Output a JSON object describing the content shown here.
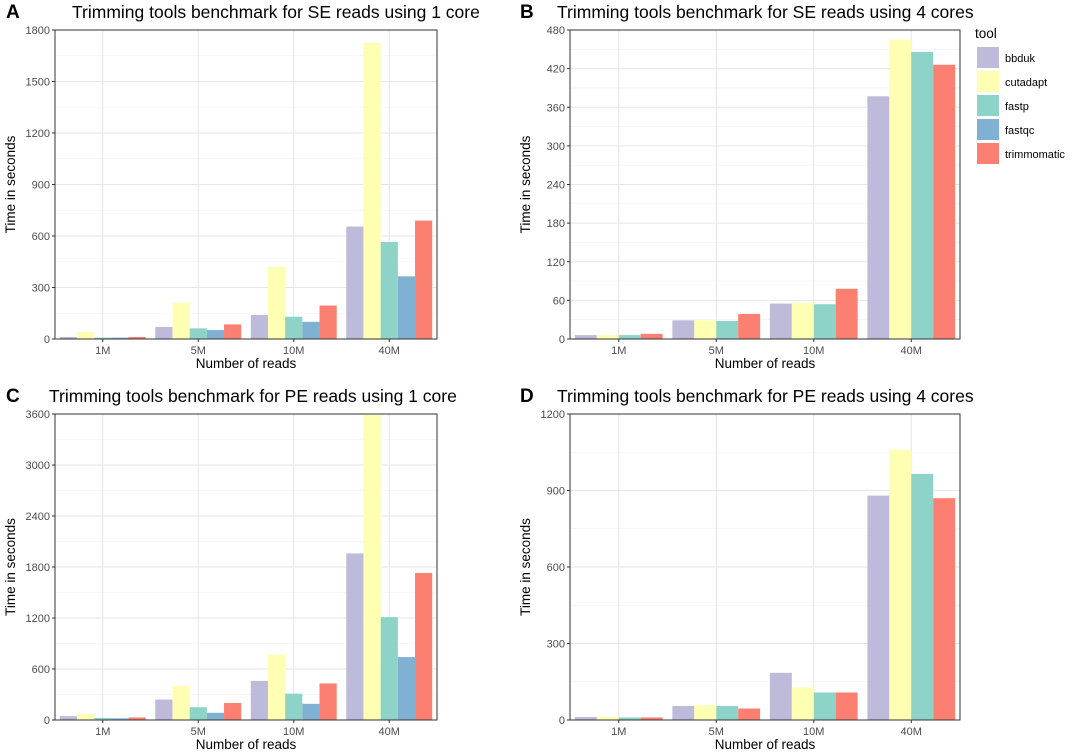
{
  "legend": {
    "title": "tool",
    "items": [
      {
        "name": "bbduk",
        "color": "#bebada"
      },
      {
        "name": "cutadapt",
        "color": "#ffffb3"
      },
      {
        "name": "fastp",
        "color": "#8dd3c7"
      },
      {
        "name": "fastqc",
        "color": "#80b1d3"
      },
      {
        "name": "trimmomatic",
        "color": "#fb8072"
      }
    ]
  },
  "chart_data": [
    {
      "panel": "A",
      "type": "bar",
      "title": "Trimming tools benchmark for SE reads using 1 core",
      "xlabel": "Number of reads",
      "ylabel": "Time in seconds",
      "categories": [
        "1M",
        "5M",
        "10M",
        "40M"
      ],
      "ylim": [
        0,
        1800
      ],
      "yticks": [
        0,
        300,
        600,
        900,
        1200,
        1500,
        1800
      ],
      "series": [
        {
          "name": "bbduk",
          "values": [
            12,
            70,
            140,
            655
          ]
        },
        {
          "name": "cutadapt",
          "values": [
            42,
            210,
            420,
            1725
          ]
        },
        {
          "name": "fastp",
          "values": [
            8,
            62,
            130,
            565
          ]
        },
        {
          "name": "fastqc",
          "values": [
            8,
            52,
            100,
            365
          ]
        },
        {
          "name": "trimmomatic",
          "values": [
            12,
            85,
            195,
            690
          ]
        }
      ]
    },
    {
      "panel": "B",
      "type": "bar",
      "title": "Trimming tools benchmark for SE reads using 4 cores",
      "xlabel": "Number of reads",
      "ylabel": "Time in seconds",
      "categories": [
        "1M",
        "5M",
        "10M",
        "40M"
      ],
      "ylim": [
        0,
        480
      ],
      "yticks": [
        0,
        60,
        120,
        180,
        240,
        300,
        360,
        420,
        480
      ],
      "series": [
        {
          "name": "bbduk",
          "values": [
            6,
            29,
            55,
            377
          ]
        },
        {
          "name": "cutadapt",
          "values": [
            6,
            29,
            56,
            465
          ]
        },
        {
          "name": "fastp",
          "values": [
            6,
            28,
            54,
            446
          ]
        },
        {
          "name": "trimmomatic",
          "values": [
            8,
            39,
            78,
            426
          ]
        }
      ]
    },
    {
      "panel": "C",
      "type": "bar",
      "title": "Trimming tools benchmark for PE reads using 1 core",
      "xlabel": "Number of reads",
      "ylabel": "Time in seconds",
      "categories": [
        "1M",
        "5M",
        "10M",
        "40M"
      ],
      "ylim": [
        0,
        3600
      ],
      "yticks": [
        0,
        600,
        1200,
        1800,
        2400,
        3000,
        3600
      ],
      "series": [
        {
          "name": "bbduk",
          "values": [
            45,
            240,
            460,
            1960
          ]
        },
        {
          "name": "cutadapt",
          "values": [
            70,
            400,
            770,
            3590
          ]
        },
        {
          "name": "fastp",
          "values": [
            25,
            150,
            310,
            1210
          ]
        },
        {
          "name": "fastqc",
          "values": [
            20,
            85,
            190,
            740
          ]
        },
        {
          "name": "trimmomatic",
          "values": [
            30,
            200,
            430,
            1730
          ]
        }
      ]
    },
    {
      "panel": "D",
      "type": "bar",
      "title": "Trimming tools benchmark for PE reads using 4 cores",
      "xlabel": "Number of reads",
      "ylabel": "Time in seconds",
      "categories": [
        "1M",
        "5M",
        "10M",
        "40M"
      ],
      "ylim": [
        0,
        1200
      ],
      "yticks": [
        0,
        300,
        600,
        900,
        1200
      ],
      "series": [
        {
          "name": "bbduk",
          "values": [
            12,
            55,
            185,
            880
          ]
        },
        {
          "name": "cutadapt",
          "values": [
            12,
            58,
            128,
            1060
          ]
        },
        {
          "name": "fastp",
          "values": [
            10,
            55,
            108,
            965
          ]
        },
        {
          "name": "trimmomatic",
          "values": [
            10,
            45,
            108,
            870
          ]
        }
      ]
    }
  ]
}
